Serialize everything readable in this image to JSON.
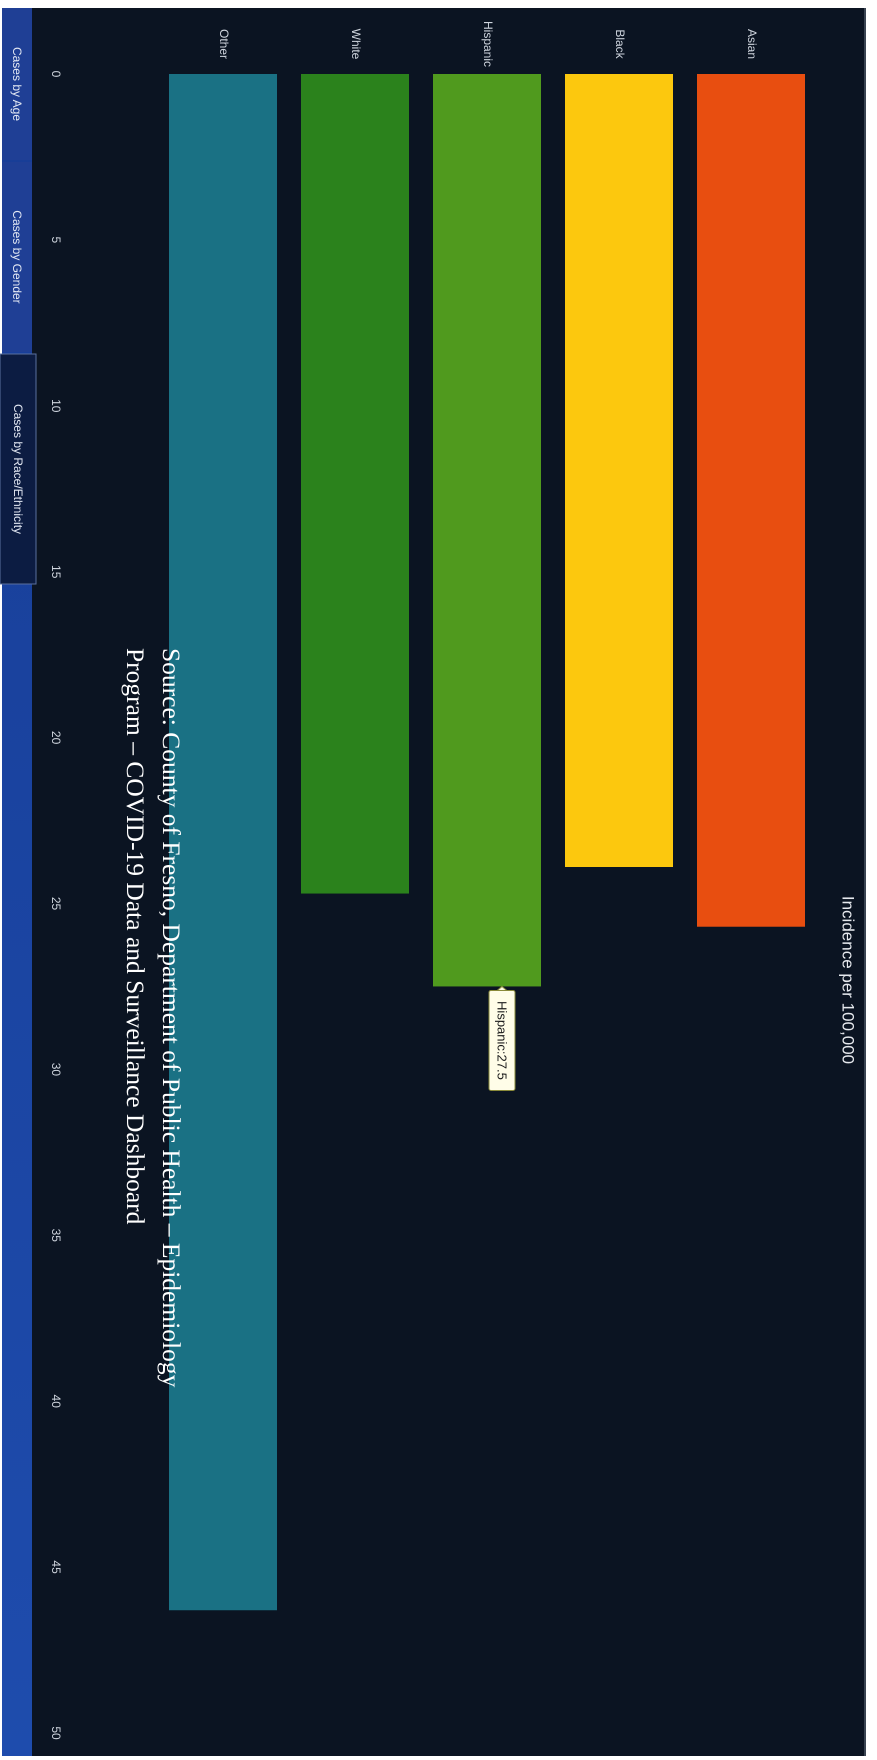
{
  "chart_data": {
    "type": "bar",
    "title": "Incidence per 100,000",
    "categories": [
      "Asian",
      "Black",
      "Hispanic",
      "White",
      "Other"
    ],
    "values": [
      25.7,
      23.9,
      27.5,
      24.7,
      46.3
    ],
    "colors": [
      "#e84e10",
      "#fcc80e",
      "#509a1e",
      "#2b821c",
      "#1a7184"
    ],
    "xlim": [
      0,
      50
    ],
    "x_ticks": [
      "0",
      "5",
      "10",
      "15",
      "20",
      "25",
      "30",
      "35",
      "40",
      "45",
      "50"
    ],
    "grid": false,
    "tooltip": "Hispanic:27.5"
  },
  "source_note": {
    "line1": "Source: County of Fresno, Department of Public Health – Epidemiology",
    "line2": "Program – COVID-19 Data and Surveillance Dashboard"
  },
  "tabs": [
    "Cases by Age",
    "Cases by Gender",
    "Cases by Race/Ethnicity"
  ],
  "active_tab": "Cases by Race/Ethnicity",
  "colors": {
    "plot_background": "#0b1422",
    "panel_border": "#3a4452",
    "tab_background": "#1f3f95",
    "tab_active_background": "#0c1c42",
    "bottom_band": "#1d47a6",
    "tooltip_background": "#fffde8",
    "tooltip_border": "#8a8a3a"
  }
}
